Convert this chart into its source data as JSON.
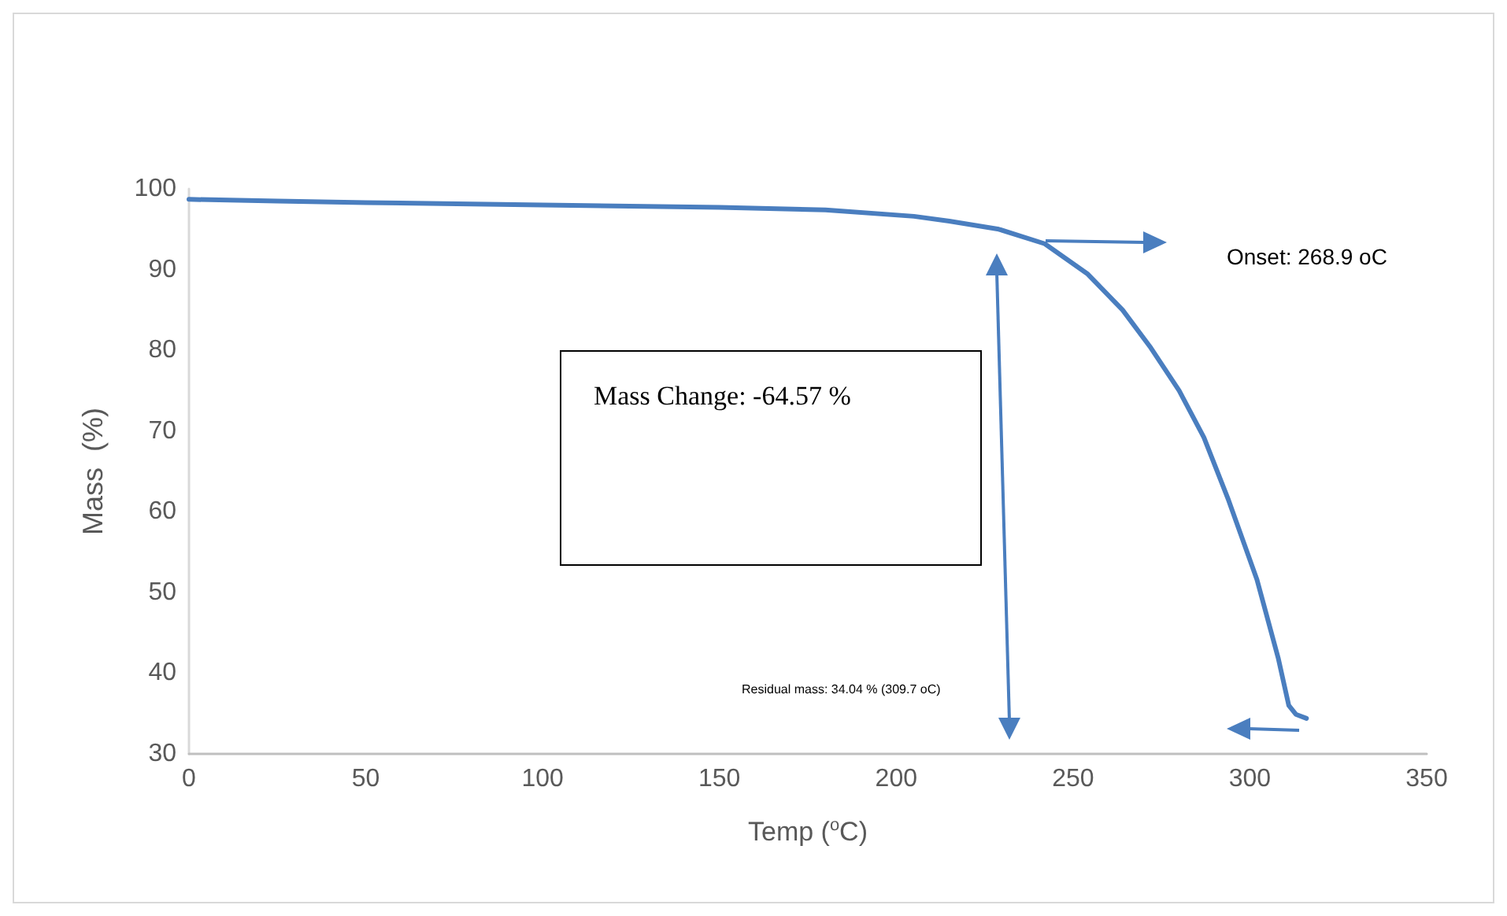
{
  "chart_data": {
    "type": "line",
    "xlabel": "Temp ($^{o}$C)",
    "ylabel": "Mass  (%)",
    "annotations": [
      "Onset: 268.9 oC",
      "Mass Change: -64.57 %",
      "Residual mass: 34.04 % (309.7 oC)"
    ],
    "series": [
      {
        "color": "#4a7ebf",
        "x": [
          0,
          25,
          50,
          100,
          150,
          180,
          205,
          215,
          229,
          242,
          254,
          264,
          272,
          280,
          287,
          294,
          302,
          308,
          311,
          313,
          316
        ],
        "values": [
          98.7,
          98.5,
          98.3,
          98.0,
          97.7,
          97.4,
          96.6,
          96.0,
          95.0,
          93.2,
          89.5,
          85.0,
          80.3,
          75.0,
          69.2,
          61.4,
          51.6,
          41.9,
          36.0,
          34.9,
          34.4
        ]
      }
    ],
    "xlim": [
      0,
      350
    ],
    "xticks": [
      0,
      50,
      100,
      150,
      200,
      250,
      300,
      350
    ],
    "ylim": [
      30,
      100
    ],
    "yticks": [
      30,
      40,
      50,
      60,
      70,
      80,
      90,
      100
    ],
    "grid": false,
    "marker": "none",
    "line_style": "solid"
  }
}
